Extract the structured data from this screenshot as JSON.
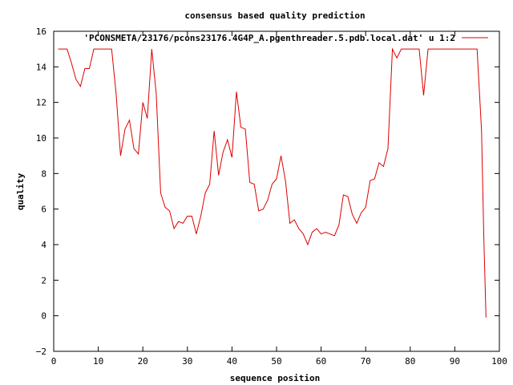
{
  "chart_data": {
    "type": "line",
    "title": "consensus based quality prediction",
    "xlabel": "sequence position",
    "ylabel": "quality",
    "xlim": [
      0,
      100
    ],
    "ylim": [
      -2,
      16
    ],
    "xticks": [
      0,
      10,
      20,
      30,
      40,
      50,
      60,
      70,
      80,
      90,
      100
    ],
    "yticks": [
      -2,
      0,
      2,
      4,
      6,
      8,
      10,
      12,
      14,
      16
    ],
    "legend_position": "top-right",
    "grid": false,
    "series": [
      {
        "name": "'PCONSMETA/23176/pcons23176.4G4P_A.pgenthreader.5.pdb.local.dat' u 1:2",
        "color": "#dd0000",
        "x": [
          1,
          2,
          3,
          4,
          5,
          6,
          7,
          8,
          9,
          10,
          11,
          12,
          13,
          14,
          15,
          16,
          17,
          18,
          19,
          20,
          21,
          22,
          23,
          24,
          25,
          26,
          27,
          28,
          29,
          30,
          31,
          32,
          33,
          34,
          35,
          36,
          37,
          38,
          39,
          40,
          41,
          42,
          43,
          44,
          45,
          46,
          47,
          48,
          49,
          50,
          51,
          52,
          53,
          54,
          55,
          56,
          57,
          58,
          59,
          60,
          61,
          62,
          63,
          64,
          65,
          66,
          67,
          68,
          69,
          70,
          71,
          72,
          73,
          74,
          75,
          76,
          77,
          78,
          79,
          80,
          81,
          82,
          83,
          84,
          85,
          86,
          87,
          88,
          89,
          90,
          91,
          92,
          93,
          94,
          95,
          96,
          96.5,
          97
        ],
        "y": [
          15,
          15,
          15,
          14.2,
          13.3,
          12.9,
          13.9,
          13.9,
          15,
          15,
          15,
          15,
          15,
          12.5,
          9,
          10.5,
          11,
          9.4,
          9.1,
          12,
          11.1,
          15,
          12.5,
          6.9,
          6.1,
          5.9,
          4.9,
          5.3,
          5.2,
          5.6,
          5.6,
          4.6,
          5.6,
          6.9,
          7.4,
          10.4,
          7.9,
          9.2,
          9.9,
          8.9,
          12.6,
          10.6,
          10.5,
          7.5,
          7.4,
          5.9,
          6,
          6.5,
          7.4,
          7.7,
          9,
          7.6,
          5.2,
          5.4,
          4.9,
          4.6,
          4,
          4.7,
          4.9,
          4.6,
          4.7,
          4.6,
          4.5,
          5.1,
          6.8,
          6.7,
          5.7,
          5.2,
          5.8,
          6.1,
          7.6,
          7.7,
          8.6,
          8.4,
          9.4,
          15,
          14.5,
          15,
          15,
          15,
          15,
          15,
          12.4,
          15,
          15,
          15,
          15,
          15,
          15,
          15,
          15,
          15,
          15,
          15,
          15,
          10.4,
          4.5,
          -0.1
        ]
      }
    ]
  }
}
